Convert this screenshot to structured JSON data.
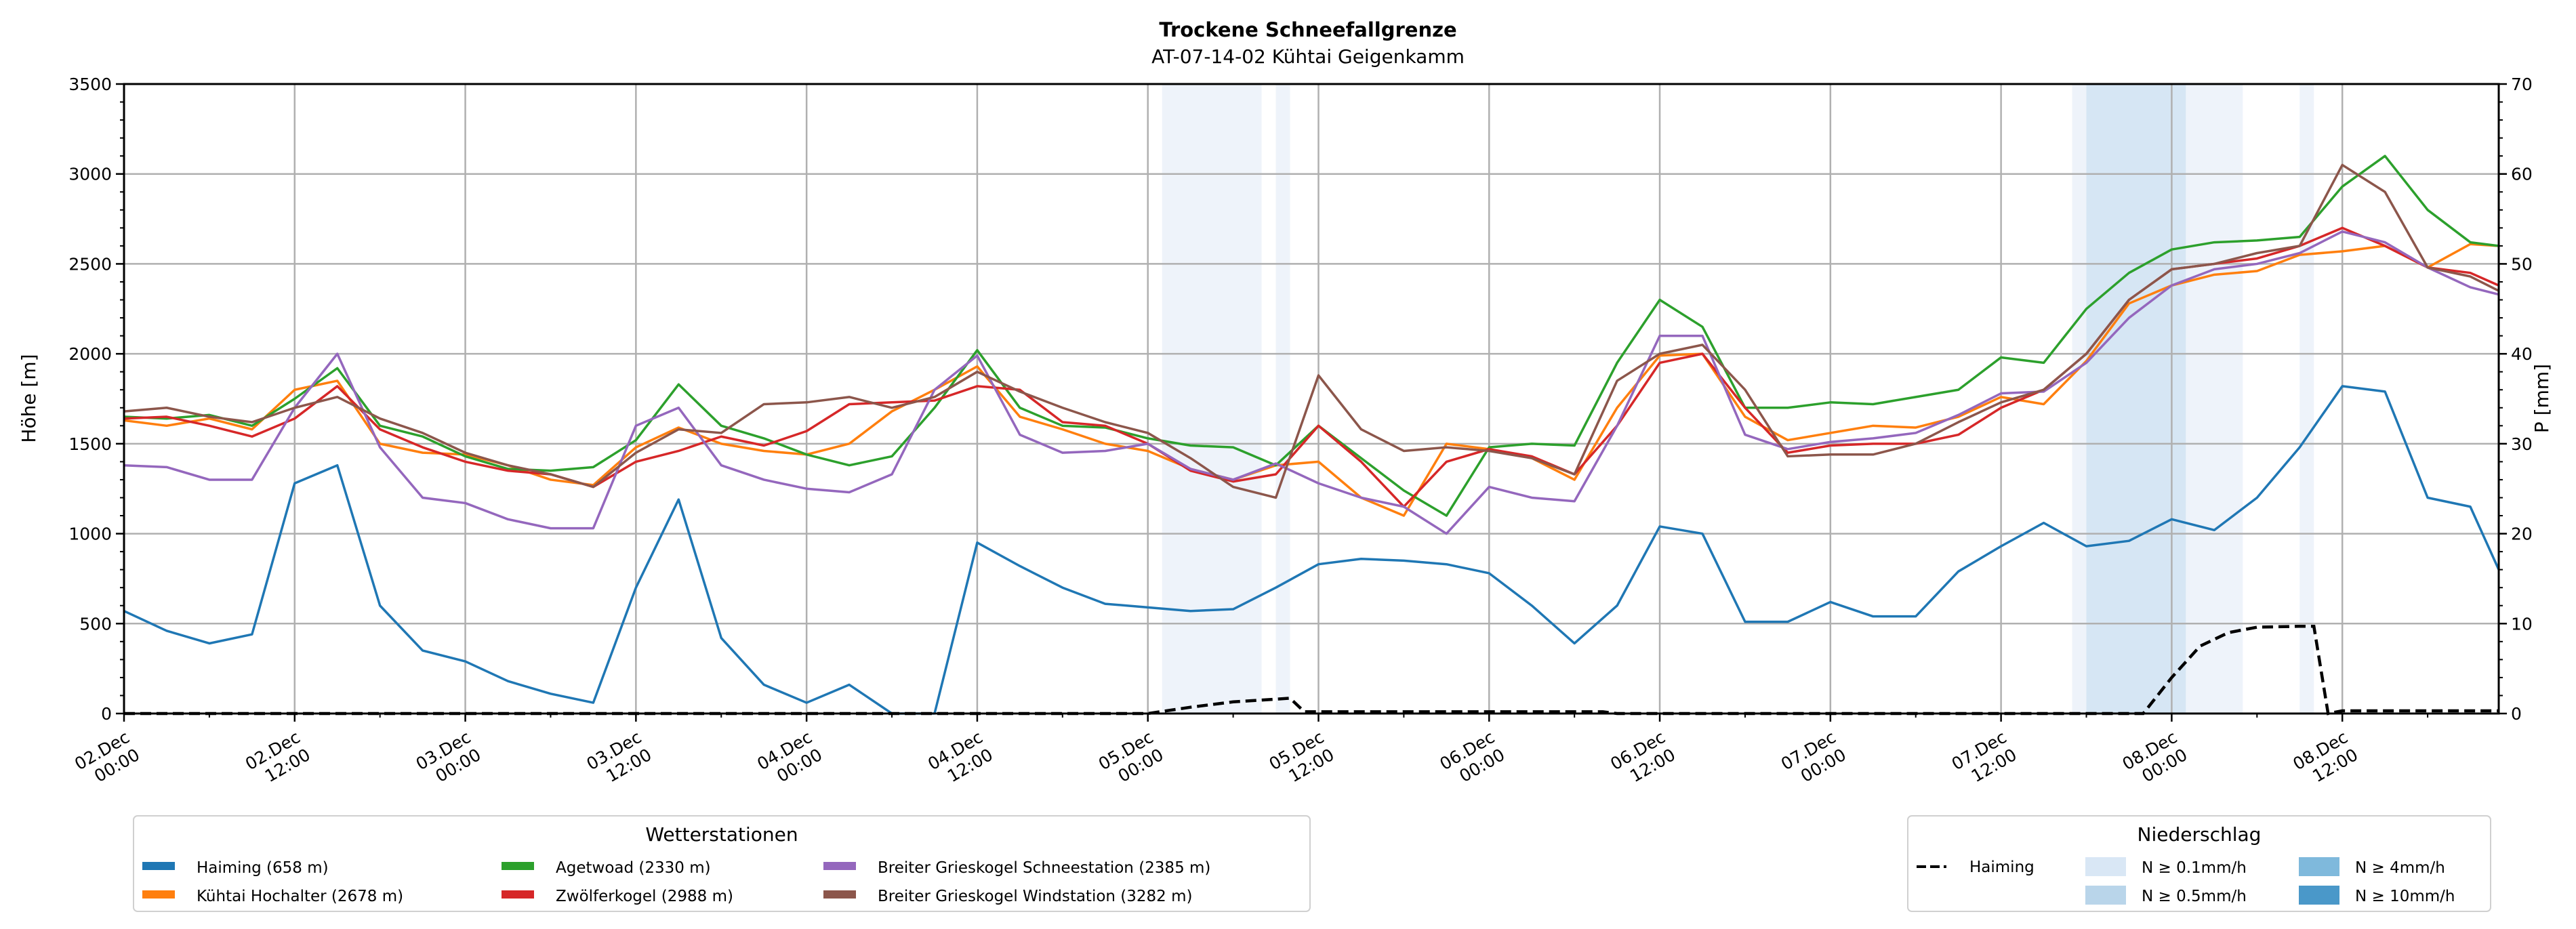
{
  "chart_data": {
    "type": "line",
    "title": "Trockene Schneefallgrenze",
    "subtitle": "AT-07-14-02 Kühtai Geigenkamm",
    "ylabel": "Höhe [m]",
    "ylabel_right": "P [mm]",
    "ylim": [
      0,
      3500
    ],
    "ylim_right": [
      0,
      70
    ],
    "xlim_hours": [
      0,
      167
    ],
    "y_ticks": [
      "0",
      "500",
      "1000",
      "1500",
      "2000",
      "2500",
      "3000",
      "3500"
    ],
    "y_ticks_right": [
      "0",
      "10",
      "20",
      "30",
      "40",
      "50",
      "60",
      "70"
    ],
    "x_ticks": [
      {
        "h": 0,
        "label": [
          "02.Dec",
          "00:00"
        ]
      },
      {
        "h": 12,
        "label": [
          "02.Dec",
          "12:00"
        ]
      },
      {
        "h": 24,
        "label": [
          "03.Dec",
          "00:00"
        ]
      },
      {
        "h": 36,
        "label": [
          "03.Dec",
          "12:00"
        ]
      },
      {
        "h": 48,
        "label": [
          "04.Dec",
          "00:00"
        ]
      },
      {
        "h": 60,
        "label": [
          "04.Dec",
          "12:00"
        ]
      },
      {
        "h": 72,
        "label": [
          "05.Dec",
          "00:00"
        ]
      },
      {
        "h": 84,
        "label": [
          "05.Dec",
          "12:00"
        ]
      },
      {
        "h": 96,
        "label": [
          "06.Dec",
          "00:00"
        ]
      },
      {
        "h": 108,
        "label": [
          "06.Dec",
          "12:00"
        ]
      },
      {
        "h": 120,
        "label": [
          "07.Dec",
          "00:00"
        ]
      },
      {
        "h": 132,
        "label": [
          "07.Dec",
          "12:00"
        ]
      },
      {
        "h": 144,
        "label": [
          "08.Dec",
          "00:00"
        ]
      },
      {
        "h": 156,
        "label": [
          "08.Dec",
          "12:00"
        ]
      }
    ],
    "x_hours": [
      0,
      3,
      6,
      9,
      12,
      15,
      18,
      21,
      24,
      27,
      30,
      33,
      36,
      39,
      42,
      45,
      48,
      51,
      54,
      57,
      60,
      63,
      66,
      69,
      72,
      75,
      78,
      81,
      84,
      87,
      90,
      93,
      96,
      99,
      102,
      105,
      108,
      111,
      114,
      117,
      120,
      123,
      126,
      129,
      132,
      135,
      138,
      141,
      144,
      147,
      150,
      153,
      156,
      159,
      162,
      165,
      167
    ],
    "series": [
      {
        "name": "Haiming (658 m)",
        "color": "#1f77b4",
        "values": [
          570,
          460,
          390,
          440,
          1280,
          1380,
          600,
          350,
          290,
          180,
          110,
          60,
          700,
          1190,
          420,
          160,
          60,
          160,
          0,
          0,
          950,
          820,
          700,
          610,
          590,
          570,
          580,
          700,
          830,
          860,
          850,
          830,
          780,
          600,
          390,
          600,
          1040,
          1000,
          510,
          510,
          620,
          540,
          540,
          790,
          930,
          1060,
          930,
          960,
          1080,
          1020,
          1200,
          1480,
          1820,
          1790,
          1200,
          1150,
          800
        ]
      },
      {
        "name": "Kühtai Hochalter (2678 m)",
        "color": "#ff7f0e",
        "values": [
          1630,
          1600,
          1640,
          1580,
          1800,
          1850,
          1500,
          1450,
          1440,
          1380,
          1300,
          1270,
          1480,
          1590,
          1500,
          1460,
          1440,
          1500,
          1680,
          1800,
          1930,
          1650,
          1580,
          1500,
          1460,
          1360,
          1300,
          1380,
          1400,
          1200,
          1100,
          1500,
          1470,
          1420,
          1300,
          1700,
          1990,
          2000,
          1650,
          1520,
          1560,
          1600,
          1590,
          1650,
          1760,
          1720,
          1960,
          2280,
          2380,
          2440,
          2460,
          2550,
          2570,
          2600,
          2480,
          2610,
          2600
        ]
      },
      {
        "name": "Agetwoad (2330 m)",
        "color": "#2ca02c",
        "values": [
          1650,
          1640,
          1660,
          1600,
          1750,
          1920,
          1600,
          1540,
          1430,
          1360,
          1350,
          1370,
          1520,
          1830,
          1600,
          1530,
          1440,
          1380,
          1430,
          1700,
          2020,
          1700,
          1600,
          1590,
          1530,
          1490,
          1480,
          1380,
          1600,
          1420,
          1240,
          1100,
          1480,
          1500,
          1490,
          1950,
          2300,
          2150,
          1700,
          1700,
          1730,
          1720,
          1760,
          1800,
          1980,
          1950,
          2250,
          2450,
          2580,
          2620,
          2630,
          2650,
          2930,
          3100,
          2800,
          2620,
          2600
        ]
      },
      {
        "name": "Zwölferkogel (2988 m)",
        "color": "#d62728",
        "values": [
          1640,
          1650,
          1600,
          1540,
          1640,
          1820,
          1580,
          1480,
          1400,
          1350,
          1330,
          1260,
          1400,
          1460,
          1540,
          1490,
          1570,
          1720,
          1730,
          1740,
          1820,
          1800,
          1620,
          1600,
          1500,
          1350,
          1290,
          1330,
          1600,
          1400,
          1150,
          1400,
          1470,
          1430,
          1330,
          1600,
          1950,
          2000,
          1700,
          1450,
          1490,
          1500,
          1500,
          1550,
          1700,
          1800,
          2000,
          2300,
          2470,
          2500,
          2530,
          2600,
          2700,
          2600,
          2480,
          2450,
          2380
        ]
      },
      {
        "name": "Breiter Grieskogel Schneestation (2385 m)",
        "color": "#9467bd",
        "values": [
          1380,
          1370,
          1300,
          1300,
          1700,
          2000,
          1480,
          1200,
          1170,
          1080,
          1030,
          1030,
          1600,
          1700,
          1380,
          1300,
          1250,
          1230,
          1330,
          1800,
          1990,
          1550,
          1450,
          1460,
          1500,
          1360,
          1300,
          1390,
          1280,
          1200,
          1150,
          1000,
          1260,
          1200,
          1180,
          1600,
          2100,
          2100,
          1550,
          1470,
          1510,
          1530,
          1560,
          1660,
          1780,
          1790,
          1950,
          2200,
          2380,
          2470,
          2500,
          2560,
          2680,
          2620,
          2480,
          2370,
          2330
        ]
      },
      {
        "name": "Breiter Grieskogel Windstation (3282 m)",
        "color": "#8c564b",
        "values": [
          1680,
          1700,
          1650,
          1620,
          1700,
          1760,
          1640,
          1560,
          1450,
          1380,
          1330,
          1260,
          1450,
          1580,
          1560,
          1720,
          1730,
          1760,
          1700,
          1760,
          1900,
          1790,
          1700,
          1620,
          1560,
          1420,
          1260,
          1200,
          1880,
          1580,
          1460,
          1480,
          1460,
          1420,
          1330,
          1850,
          2000,
          2050,
          1800,
          1430,
          1440,
          1440,
          1500,
          1620,
          1730,
          1800,
          2000,
          2300,
          2470,
          2500,
          2560,
          2600,
          3050,
          2900,
          2480,
          2430,
          2350
        ]
      }
    ],
    "precipitation": {
      "name": "Haiming",
      "color": "#000000",
      "hours": [
        0,
        72,
        75,
        78,
        82,
        83,
        84,
        104,
        105,
        142,
        144,
        146,
        148,
        150,
        153,
        154,
        155,
        156,
        167
      ],
      "values": [
        0,
        0,
        0.7,
        1.3,
        1.7,
        0.2,
        0.2,
        0.2,
        0,
        0,
        4.0,
        7.5,
        9.0,
        9.6,
        9.7,
        9.7,
        0,
        0.3,
        0.3
      ]
    },
    "precip_bands": [
      {
        "start": 73,
        "end": 80,
        "class": "N ≥ 0.1mm/h"
      },
      {
        "start": 81,
        "end": 82,
        "class": "N ≥ 0.1mm/h"
      },
      {
        "start": 137,
        "end": 138,
        "class": "N ≥ 0.1mm/h"
      },
      {
        "start": 138,
        "end": 145,
        "class": "N ≥ 0.5mm/h"
      },
      {
        "start": 145,
        "end": 149,
        "class": "N ≥ 0.1mm/h"
      },
      {
        "start": 153,
        "end": 154,
        "class": "N ≥ 0.1mm/h"
      }
    ],
    "band_colors": {
      "N ≥ 0.1mm/h": "#eef3fa",
      "N ≥ 0.5mm/h": "#d6e6f4",
      "N ≥ 4mm/h": "#7fb9dc",
      "N ≥ 10mm/h": "#4a98c9"
    },
    "legend_stations": {
      "title": "Wetterstationen",
      "placement": "lower-left, below plot"
    },
    "legend_precip": {
      "title": "Niederschlag",
      "placement": "lower-right, below plot",
      "line_label": "Haiming",
      "items": [
        {
          "label": "N ≥ 0.1mm/h",
          "color": "#d9e7f5"
        },
        {
          "label": "N ≥ 0.5mm/h",
          "color": "#b9d5ea"
        },
        {
          "label": "N ≥ 4mm/h",
          "color": "#7fb9dc"
        },
        {
          "label": "N ≥ 10mm/h",
          "color": "#4a98c9"
        }
      ]
    },
    "grid": true
  }
}
